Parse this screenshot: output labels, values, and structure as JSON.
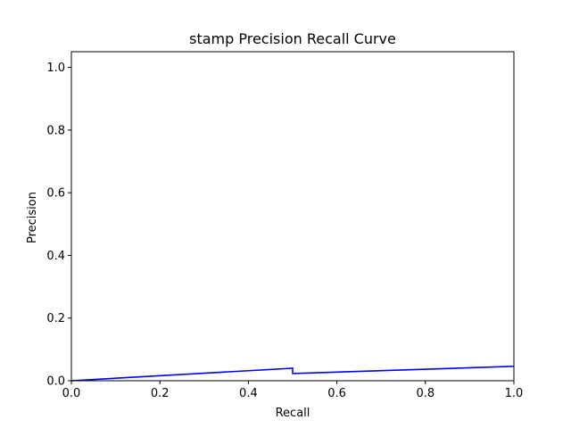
{
  "chart_data": {
    "type": "line",
    "title": "stamp Precision Recall Curve",
    "xlabel": "Recall",
    "ylabel": "Precision",
    "xlim": [
      0.0,
      1.0
    ],
    "ylim": [
      0.0,
      1.05
    ],
    "x_ticks": [
      "0.0",
      "0.2",
      "0.4",
      "0.6",
      "0.8",
      "1.0"
    ],
    "y_ticks": [
      "0.0",
      "0.2",
      "0.4",
      "0.6",
      "0.8",
      "1.0"
    ],
    "grid": false,
    "series": [
      {
        "color": "#0000ff",
        "points": [
          [
            0.0,
            0.0
          ],
          [
            0.5,
            0.04
          ],
          [
            0.5,
            0.023
          ],
          [
            1.0,
            0.046
          ]
        ]
      }
    ]
  }
}
